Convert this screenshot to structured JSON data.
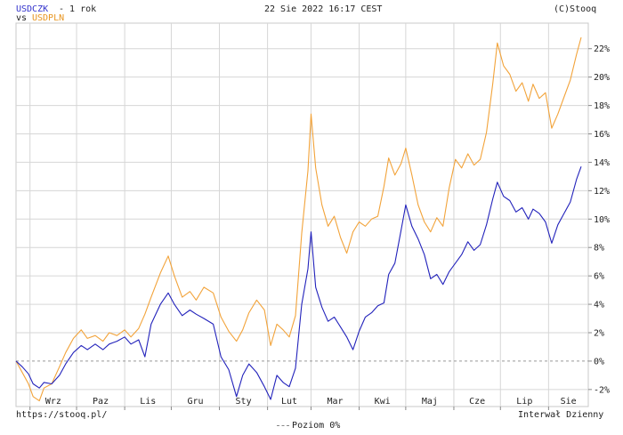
{
  "header": {
    "symbol1": "USDCZK",
    "period": " - 1 rok",
    "vs": "vs",
    "symbol2": "USDPLN",
    "datetime": "22 Sie 2022 16:17 CEST",
    "copyright": "(C)Stooq"
  },
  "footer": {
    "url": "https://stooq.pl/",
    "level_line": "Poziom 0%",
    "interval": "Interwał Dzienny"
  },
  "colors": {
    "usdczk": "#2222bb",
    "usdpln": "#f2a33a",
    "grid": "#d6d6d6",
    "zero": "#999999",
    "usdczk_label": "#3333cc",
    "usdpln_label": "#e8951f"
  },
  "chart_data": {
    "type": "line",
    "x_tick_labels": [
      "Wrz",
      "Paz",
      "Lis",
      "Gru",
      "Sty",
      "Lut",
      "Mar",
      "Kwi",
      "Maj",
      "Cze",
      "Lip",
      "Sie"
    ],
    "y_tick_labels": [
      "-2%",
      "0%",
      "2%",
      "4%",
      "6%",
      "8%",
      "10%",
      "12%",
      "14%",
      "16%",
      "18%",
      "20%",
      "22%"
    ],
    "y_ticks": [
      -2,
      0,
      2,
      4,
      6,
      8,
      10,
      12,
      14,
      16,
      18,
      20,
      22
    ],
    "ylim": [
      -3.2,
      23.8
    ],
    "x_range": [
      "2021-08-23",
      "2022-08-22"
    ],
    "series": [
      {
        "name": "USDCZK",
        "points": [
          [
            "2021-08-23",
            0
          ],
          [
            "2021-08-27",
            -0.4
          ],
          [
            "2021-08-31",
            -0.9
          ],
          [
            "2021-09-03",
            -1.6
          ],
          [
            "2021-09-07",
            -1.9
          ],
          [
            "2021-09-10",
            -1.5
          ],
          [
            "2021-09-15",
            -1.6
          ],
          [
            "2021-09-20",
            -1.0
          ],
          [
            "2021-09-24",
            -0.2
          ],
          [
            "2021-09-29",
            0.6
          ],
          [
            "2021-10-04",
            1.1
          ],
          [
            "2021-10-08",
            0.8
          ],
          [
            "2021-10-13",
            1.2
          ],
          [
            "2021-10-18",
            0.8
          ],
          [
            "2021-10-22",
            1.2
          ],
          [
            "2021-10-27",
            1.4
          ],
          [
            "2021-11-01",
            1.7
          ],
          [
            "2021-11-05",
            1.2
          ],
          [
            "2021-11-10",
            1.5
          ],
          [
            "2021-11-14",
            0.3
          ],
          [
            "2021-11-18",
            2.6
          ],
          [
            "2021-11-24",
            4.0
          ],
          [
            "2021-11-29",
            4.8
          ],
          [
            "2021-12-03",
            4.0
          ],
          [
            "2021-12-08",
            3.2
          ],
          [
            "2021-12-13",
            3.6
          ],
          [
            "2021-12-17",
            3.3
          ],
          [
            "2021-12-22",
            3.0
          ],
          [
            "2021-12-28",
            2.6
          ],
          [
            "2022-01-02",
            0.3
          ],
          [
            "2022-01-07",
            -0.6
          ],
          [
            "2022-01-12",
            -2.5
          ],
          [
            "2022-01-16",
            -1.0
          ],
          [
            "2022-01-20",
            -0.2
          ],
          [
            "2022-01-25",
            -0.8
          ],
          [
            "2022-01-30",
            -1.8
          ],
          [
            "2022-02-03",
            -2.7
          ],
          [
            "2022-02-07",
            -1.0
          ],
          [
            "2022-02-11",
            -1.5
          ],
          [
            "2022-02-15",
            -1.8
          ],
          [
            "2022-02-19",
            -0.5
          ],
          [
            "2022-02-23",
            4.0
          ],
          [
            "2022-02-27",
            6.5
          ],
          [
            "2022-03-01",
            9.1
          ],
          [
            "2022-03-04",
            5.2
          ],
          [
            "2022-03-08",
            3.8
          ],
          [
            "2022-03-12",
            2.8
          ],
          [
            "2022-03-16",
            3.1
          ],
          [
            "2022-03-20",
            2.4
          ],
          [
            "2022-03-24",
            1.7
          ],
          [
            "2022-03-28",
            0.8
          ],
          [
            "2022-04-01",
            2.1
          ],
          [
            "2022-04-05",
            3.1
          ],
          [
            "2022-04-09",
            3.4
          ],
          [
            "2022-04-13",
            3.9
          ],
          [
            "2022-04-17",
            4.1
          ],
          [
            "2022-04-20",
            6.1
          ],
          [
            "2022-04-24",
            6.9
          ],
          [
            "2022-04-28",
            9.2
          ],
          [
            "2022-05-01",
            11.0
          ],
          [
            "2022-05-05",
            9.5
          ],
          [
            "2022-05-09",
            8.6
          ],
          [
            "2022-05-13",
            7.5
          ],
          [
            "2022-05-17",
            5.8
          ],
          [
            "2022-05-21",
            6.1
          ],
          [
            "2022-05-25",
            5.4
          ],
          [
            "2022-05-29",
            6.3
          ],
          [
            "2022-06-02",
            6.9
          ],
          [
            "2022-06-06",
            7.5
          ],
          [
            "2022-06-10",
            8.4
          ],
          [
            "2022-06-14",
            7.8
          ],
          [
            "2022-06-18",
            8.2
          ],
          [
            "2022-06-22",
            9.6
          ],
          [
            "2022-06-26",
            11.4
          ],
          [
            "2022-06-29",
            12.6
          ],
          [
            "2022-07-03",
            11.6
          ],
          [
            "2022-07-07",
            11.3
          ],
          [
            "2022-07-11",
            10.5
          ],
          [
            "2022-07-15",
            10.8
          ],
          [
            "2022-07-19",
            10.0
          ],
          [
            "2022-07-22",
            10.7
          ],
          [
            "2022-07-26",
            10.4
          ],
          [
            "2022-07-30",
            9.8
          ],
          [
            "2022-08-03",
            8.3
          ],
          [
            "2022-08-07",
            9.6
          ],
          [
            "2022-08-11",
            10.4
          ],
          [
            "2022-08-15",
            11.2
          ],
          [
            "2022-08-19",
            12.8
          ],
          [
            "2022-08-22",
            13.7
          ]
        ]
      },
      {
        "name": "USDPLN",
        "points": [
          [
            "2021-08-23",
            0
          ],
          [
            "2021-08-27",
            -0.8
          ],
          [
            "2021-08-31",
            -1.6
          ],
          [
            "2021-09-03",
            -2.5
          ],
          [
            "2021-09-07",
            -2.8
          ],
          [
            "2021-09-10",
            -1.9
          ],
          [
            "2021-09-15",
            -1.6
          ],
          [
            "2021-09-20",
            -0.4
          ],
          [
            "2021-09-24",
            0.6
          ],
          [
            "2021-09-29",
            1.6
          ],
          [
            "2021-10-04",
            2.2
          ],
          [
            "2021-10-08",
            1.6
          ],
          [
            "2021-10-13",
            1.8
          ],
          [
            "2021-10-18",
            1.4
          ],
          [
            "2021-10-22",
            2.0
          ],
          [
            "2021-10-27",
            1.8
          ],
          [
            "2021-11-01",
            2.2
          ],
          [
            "2021-11-05",
            1.7
          ],
          [
            "2021-11-10",
            2.3
          ],
          [
            "2021-11-14",
            3.3
          ],
          [
            "2021-11-18",
            4.5
          ],
          [
            "2021-11-24",
            6.2
          ],
          [
            "2021-11-29",
            7.4
          ],
          [
            "2021-12-03",
            6.0
          ],
          [
            "2021-12-08",
            4.5
          ],
          [
            "2021-12-13",
            4.9
          ],
          [
            "2021-12-17",
            4.3
          ],
          [
            "2021-12-22",
            5.2
          ],
          [
            "2021-12-28",
            4.8
          ],
          [
            "2022-01-02",
            3.1
          ],
          [
            "2022-01-07",
            2.1
          ],
          [
            "2022-01-12",
            1.4
          ],
          [
            "2022-01-16",
            2.2
          ],
          [
            "2022-01-20",
            3.4
          ],
          [
            "2022-01-25",
            4.3
          ],
          [
            "2022-01-30",
            3.6
          ],
          [
            "2022-02-03",
            1.1
          ],
          [
            "2022-02-07",
            2.6
          ],
          [
            "2022-02-11",
            2.2
          ],
          [
            "2022-02-15",
            1.7
          ],
          [
            "2022-02-19",
            3.2
          ],
          [
            "2022-02-23",
            9.0
          ],
          [
            "2022-02-27",
            13.4
          ],
          [
            "2022-03-01",
            17.4
          ],
          [
            "2022-03-04",
            13.6
          ],
          [
            "2022-03-08",
            11.0
          ],
          [
            "2022-03-12",
            9.5
          ],
          [
            "2022-03-16",
            10.2
          ],
          [
            "2022-03-20",
            8.7
          ],
          [
            "2022-03-24",
            7.6
          ],
          [
            "2022-03-28",
            9.1
          ],
          [
            "2022-04-01",
            9.8
          ],
          [
            "2022-04-05",
            9.5
          ],
          [
            "2022-04-09",
            10.0
          ],
          [
            "2022-04-13",
            10.2
          ],
          [
            "2022-04-17",
            12.3
          ],
          [
            "2022-04-20",
            14.3
          ],
          [
            "2022-04-24",
            13.1
          ],
          [
            "2022-04-28",
            13.9
          ],
          [
            "2022-05-01",
            15.0
          ],
          [
            "2022-05-05",
            13.1
          ],
          [
            "2022-05-09",
            11.0
          ],
          [
            "2022-05-13",
            9.8
          ],
          [
            "2022-05-17",
            9.1
          ],
          [
            "2022-05-21",
            10.1
          ],
          [
            "2022-05-25",
            9.5
          ],
          [
            "2022-05-29",
            12.2
          ],
          [
            "2022-06-02",
            14.2
          ],
          [
            "2022-06-06",
            13.6
          ],
          [
            "2022-06-10",
            14.6
          ],
          [
            "2022-06-14",
            13.8
          ],
          [
            "2022-06-18",
            14.2
          ],
          [
            "2022-06-22",
            16.1
          ],
          [
            "2022-06-26",
            19.5
          ],
          [
            "2022-06-29",
            22.4
          ],
          [
            "2022-07-03",
            20.8
          ],
          [
            "2022-07-07",
            20.2
          ],
          [
            "2022-07-11",
            19.0
          ],
          [
            "2022-07-15",
            19.6
          ],
          [
            "2022-07-19",
            18.3
          ],
          [
            "2022-07-22",
            19.5
          ],
          [
            "2022-07-26",
            18.5
          ],
          [
            "2022-07-30",
            18.9
          ],
          [
            "2022-08-03",
            16.4
          ],
          [
            "2022-08-07",
            17.4
          ],
          [
            "2022-08-11",
            18.6
          ],
          [
            "2022-08-15",
            19.8
          ],
          [
            "2022-08-19",
            21.6
          ],
          [
            "2022-08-22",
            22.8
          ]
        ]
      }
    ],
    "grid": true,
    "zero_line": "dashed"
  }
}
